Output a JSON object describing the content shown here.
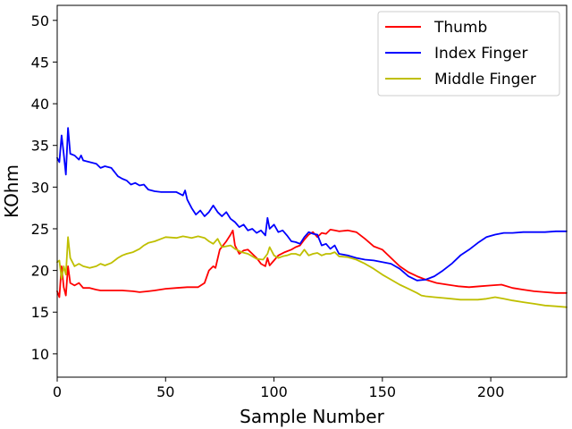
{
  "chart_data": {
    "type": "line",
    "title": "",
    "xlabel": "Sample Number",
    "ylabel": "KOhm",
    "xlim": [
      0,
      235
    ],
    "ylim": [
      7.2,
      51.8
    ],
    "xticks": [
      0,
      50,
      100,
      150,
      200
    ],
    "yticks": [
      10,
      15,
      20,
      25,
      30,
      35,
      40,
      45,
      50
    ],
    "grid": false,
    "legend_position": "top-right",
    "series": [
      {
        "name": "Thumb",
        "color": "#ff0000",
        "points": [
          [
            0,
            17.5
          ],
          [
            1,
            16.8
          ],
          [
            2,
            20.5
          ],
          [
            3,
            18.0
          ],
          [
            4,
            17.0
          ],
          [
            5,
            20.5
          ],
          [
            6,
            18.5
          ],
          [
            8,
            18.2
          ],
          [
            10,
            18.5
          ],
          [
            12,
            17.9
          ],
          [
            15,
            17.9
          ],
          [
            18,
            17.7
          ],
          [
            20,
            17.6
          ],
          [
            25,
            17.6
          ],
          [
            30,
            17.6
          ],
          [
            35,
            17.5
          ],
          [
            38,
            17.4
          ],
          [
            42,
            17.5
          ],
          [
            45,
            17.6
          ],
          [
            50,
            17.8
          ],
          [
            55,
            17.9
          ],
          [
            60,
            18.0
          ],
          [
            65,
            18.0
          ],
          [
            68,
            18.5
          ],
          [
            70,
            20.0
          ],
          [
            72,
            20.5
          ],
          [
            73,
            20.3
          ],
          [
            75,
            22.5
          ],
          [
            78,
            23.5
          ],
          [
            80,
            24.3
          ],
          [
            81,
            24.8
          ],
          [
            82,
            23.0
          ],
          [
            84,
            22.0
          ],
          [
            86,
            22.4
          ],
          [
            88,
            22.5
          ],
          [
            90,
            22.0
          ],
          [
            92,
            21.5
          ],
          [
            94,
            20.8
          ],
          [
            96,
            20.5
          ],
          [
            97,
            21.5
          ],
          [
            98,
            20.6
          ],
          [
            100,
            21.2
          ],
          [
            102,
            21.8
          ],
          [
            105,
            22.2
          ],
          [
            108,
            22.5
          ],
          [
            110,
            22.8
          ],
          [
            112,
            23.0
          ],
          [
            114,
            23.7
          ],
          [
            116,
            24.3
          ],
          [
            118,
            24.6
          ],
          [
            120,
            24.0
          ],
          [
            122,
            24.5
          ],
          [
            124,
            24.4
          ],
          [
            126,
            24.9
          ],
          [
            128,
            24.8
          ],
          [
            130,
            24.7
          ],
          [
            134,
            24.8
          ],
          [
            138,
            24.6
          ],
          [
            142,
            23.8
          ],
          [
            146,
            22.9
          ],
          [
            150,
            22.5
          ],
          [
            154,
            21.5
          ],
          [
            158,
            20.5
          ],
          [
            162,
            19.8
          ],
          [
            166,
            19.3
          ],
          [
            170,
            18.9
          ],
          [
            175,
            18.5
          ],
          [
            180,
            18.3
          ],
          [
            185,
            18.1
          ],
          [
            190,
            18.0
          ],
          [
            195,
            18.1
          ],
          [
            200,
            18.2
          ],
          [
            205,
            18.3
          ],
          [
            210,
            17.9
          ],
          [
            215,
            17.7
          ],
          [
            220,
            17.5
          ],
          [
            225,
            17.4
          ],
          [
            230,
            17.3
          ],
          [
            235,
            17.3
          ]
        ]
      },
      {
        "name": "Index Finger",
        "color": "#0000ff",
        "points": [
          [
            0,
            33.5
          ],
          [
            1,
            33.0
          ],
          [
            2,
            36.2
          ],
          [
            3,
            34.0
          ],
          [
            4,
            31.5
          ],
          [
            5,
            37.1
          ],
          [
            6,
            34.0
          ],
          [
            8,
            33.8
          ],
          [
            10,
            33.3
          ],
          [
            11,
            33.8
          ],
          [
            12,
            33.2
          ],
          [
            15,
            33.0
          ],
          [
            18,
            32.8
          ],
          [
            20,
            32.3
          ],
          [
            22,
            32.5
          ],
          [
            25,
            32.3
          ],
          [
            28,
            31.3
          ],
          [
            30,
            31.0
          ],
          [
            32,
            30.8
          ],
          [
            34,
            30.3
          ],
          [
            36,
            30.5
          ],
          [
            38,
            30.2
          ],
          [
            40,
            30.3
          ],
          [
            42,
            29.7
          ],
          [
            45,
            29.5
          ],
          [
            48,
            29.4
          ],
          [
            50,
            29.4
          ],
          [
            55,
            29.4
          ],
          [
            58,
            29.0
          ],
          [
            59,
            29.6
          ],
          [
            60,
            28.5
          ],
          [
            62,
            27.5
          ],
          [
            64,
            26.7
          ],
          [
            66,
            27.2
          ],
          [
            68,
            26.5
          ],
          [
            70,
            27.0
          ],
          [
            72,
            27.8
          ],
          [
            74,
            27.0
          ],
          [
            76,
            26.5
          ],
          [
            78,
            27.0
          ],
          [
            80,
            26.2
          ],
          [
            82,
            25.8
          ],
          [
            84,
            25.2
          ],
          [
            86,
            25.5
          ],
          [
            88,
            24.8
          ],
          [
            90,
            25.0
          ],
          [
            92,
            24.5
          ],
          [
            94,
            24.8
          ],
          [
            96,
            24.2
          ],
          [
            97,
            26.3
          ],
          [
            98,
            25.0
          ],
          [
            100,
            25.5
          ],
          [
            102,
            24.6
          ],
          [
            104,
            24.8
          ],
          [
            106,
            24.2
          ],
          [
            108,
            23.5
          ],
          [
            110,
            23.4
          ],
          [
            112,
            23.2
          ],
          [
            114,
            24.0
          ],
          [
            116,
            24.6
          ],
          [
            118,
            24.4
          ],
          [
            120,
            24.3
          ],
          [
            122,
            23.0
          ],
          [
            124,
            23.2
          ],
          [
            126,
            22.6
          ],
          [
            128,
            23.0
          ],
          [
            130,
            22.0
          ],
          [
            134,
            21.8
          ],
          [
            138,
            21.5
          ],
          [
            142,
            21.3
          ],
          [
            146,
            21.2
          ],
          [
            150,
            21.0
          ],
          [
            154,
            20.8
          ],
          [
            158,
            20.2
          ],
          [
            162,
            19.3
          ],
          [
            166,
            18.8
          ],
          [
            170,
            18.9
          ],
          [
            174,
            19.3
          ],
          [
            178,
            20.0
          ],
          [
            182,
            20.8
          ],
          [
            186,
            21.8
          ],
          [
            190,
            22.5
          ],
          [
            194,
            23.3
          ],
          [
            198,
            24.0
          ],
          [
            202,
            24.3
          ],
          [
            206,
            24.5
          ],
          [
            210,
            24.5
          ],
          [
            215,
            24.6
          ],
          [
            220,
            24.6
          ],
          [
            225,
            24.6
          ],
          [
            230,
            24.7
          ],
          [
            235,
            24.7
          ]
        ]
      },
      {
        "name": "Middle Finger",
        "color": "#bfbf00",
        "points": [
          [
            0,
            21.0
          ],
          [
            1,
            21.2
          ],
          [
            2,
            19.0
          ],
          [
            3,
            20.5
          ],
          [
            4,
            19.5
          ],
          [
            5,
            24.0
          ],
          [
            6,
            21.5
          ],
          [
            8,
            20.5
          ],
          [
            10,
            20.8
          ],
          [
            12,
            20.5
          ],
          [
            15,
            20.3
          ],
          [
            18,
            20.5
          ],
          [
            20,
            20.8
          ],
          [
            22,
            20.6
          ],
          [
            25,
            20.9
          ],
          [
            28,
            21.5
          ],
          [
            30,
            21.8
          ],
          [
            32,
            22.0
          ],
          [
            35,
            22.2
          ],
          [
            38,
            22.6
          ],
          [
            40,
            23.0
          ],
          [
            42,
            23.3
          ],
          [
            45,
            23.5
          ],
          [
            48,
            23.8
          ],
          [
            50,
            24.0
          ],
          [
            55,
            23.9
          ],
          [
            58,
            24.1
          ],
          [
            60,
            24.0
          ],
          [
            62,
            23.9
          ],
          [
            65,
            24.1
          ],
          [
            68,
            23.9
          ],
          [
            70,
            23.5
          ],
          [
            72,
            23.2
          ],
          [
            74,
            23.8
          ],
          [
            76,
            22.8
          ],
          [
            80,
            23.0
          ],
          [
            82,
            22.6
          ],
          [
            85,
            22.2
          ],
          [
            88,
            22.0
          ],
          [
            90,
            21.7
          ],
          [
            92,
            21.4
          ],
          [
            95,
            21.3
          ],
          [
            97,
            22.0
          ],
          [
            98,
            22.8
          ],
          [
            100,
            21.8
          ],
          [
            102,
            21.5
          ],
          [
            104,
            21.7
          ],
          [
            106,
            21.8
          ],
          [
            108,
            22.0
          ],
          [
            110,
            22.0
          ],
          [
            112,
            21.8
          ],
          [
            114,
            22.5
          ],
          [
            116,
            21.8
          ],
          [
            118,
            22.0
          ],
          [
            120,
            22.1
          ],
          [
            122,
            21.8
          ],
          [
            124,
            22.0
          ],
          [
            126,
            22.0
          ],
          [
            128,
            22.2
          ],
          [
            130,
            21.7
          ],
          [
            134,
            21.6
          ],
          [
            138,
            21.3
          ],
          [
            142,
            20.8
          ],
          [
            146,
            20.2
          ],
          [
            150,
            19.5
          ],
          [
            154,
            18.9
          ],
          [
            158,
            18.3
          ],
          [
            162,
            17.8
          ],
          [
            166,
            17.3
          ],
          [
            168,
            17.0
          ],
          [
            170,
            16.9
          ],
          [
            174,
            16.8
          ],
          [
            178,
            16.7
          ],
          [
            182,
            16.6
          ],
          [
            186,
            16.5
          ],
          [
            190,
            16.5
          ],
          [
            194,
            16.5
          ],
          [
            198,
            16.6
          ],
          [
            202,
            16.8
          ],
          [
            206,
            16.6
          ],
          [
            210,
            16.4
          ],
          [
            215,
            16.2
          ],
          [
            220,
            16.0
          ],
          [
            225,
            15.8
          ],
          [
            230,
            15.7
          ],
          [
            235,
            15.6
          ]
        ]
      }
    ]
  }
}
